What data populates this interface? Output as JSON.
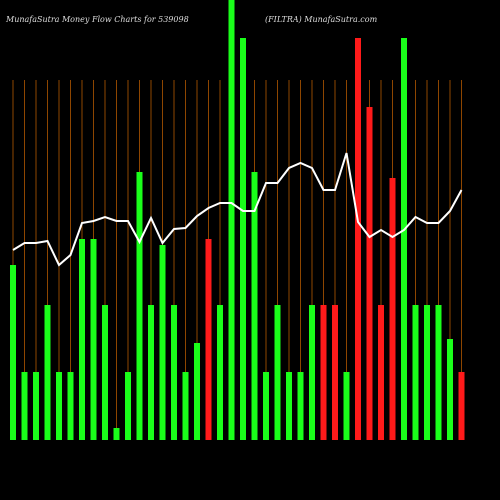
{
  "chart_data": {
    "type": "bar",
    "title": "MunafaSutra  Money Flow  Charts for 539098",
    "subtitle": "(FILTRA) MunafaSutra.com",
    "categories": [
      null,
      null,
      null,
      null,
      null,
      null,
      null,
      null,
      null,
      null,
      null,
      null,
      null,
      null,
      null,
      null,
      null,
      null,
      null,
      null,
      null,
      null,
      null,
      null,
      null,
      null,
      null,
      null,
      null,
      null,
      null,
      null,
      null,
      null,
      null,
      null,
      null,
      null,
      null,
      null
    ],
    "series": [
      {
        "type": "bar",
        "values": [
          175,
          68,
          68,
          135,
          68,
          68,
          201,
          201,
          135,
          12,
          68,
          268,
          135,
          195,
          135,
          68,
          97,
          201,
          135,
          440,
          402,
          268,
          68,
          135,
          68,
          68,
          135,
          135,
          135,
          68,
          402,
          333,
          135,
          262,
          402,
          135,
          135,
          135,
          101,
          68
        ],
        "colors": [
          "#1aff1a",
          "#1aff1a",
          "#1aff1a",
          "#1aff1a",
          "#1aff1a",
          "#1aff1a",
          "#1aff1a",
          "#1aff1a",
          "#1aff1a",
          "#1aff1a",
          "#1aff1a",
          "#1aff1a",
          "#1aff1a",
          "#1aff1a",
          "#1aff1a",
          "#1aff1a",
          "#1aff1a",
          "#ff1a1a",
          "#1aff1a",
          "#1aff1a",
          "#1aff1a",
          "#1aff1a",
          "#1aff1a",
          "#1aff1a",
          "#1aff1a",
          "#1aff1a",
          "#1aff1a",
          "#ff1a1a",
          "#ff1a1a",
          "#1aff1a",
          "#ff1a1a",
          "#ff1a1a",
          "#ff1a1a",
          "#ff1a1a",
          "#1aff1a",
          "#1aff1a",
          "#1aff1a",
          "#1aff1a",
          "#1aff1a",
          "#ff1a1a"
        ]
      },
      {
        "type": "line",
        "color": "#ffffff",
        "values": [
          190,
          197,
          197,
          199,
          175,
          185,
          217,
          219,
          223,
          219,
          219,
          198,
          222,
          197,
          211,
          212,
          224,
          232,
          237,
          237,
          229,
          229,
          257,
          257,
          272,
          277,
          272,
          250,
          250,
          287,
          218,
          203,
          210,
          203,
          210,
          223,
          217,
          217,
          229,
          250
        ]
      }
    ],
    "ylim": [
      0,
      440
    ],
    "grid_color": "#b35900"
  }
}
